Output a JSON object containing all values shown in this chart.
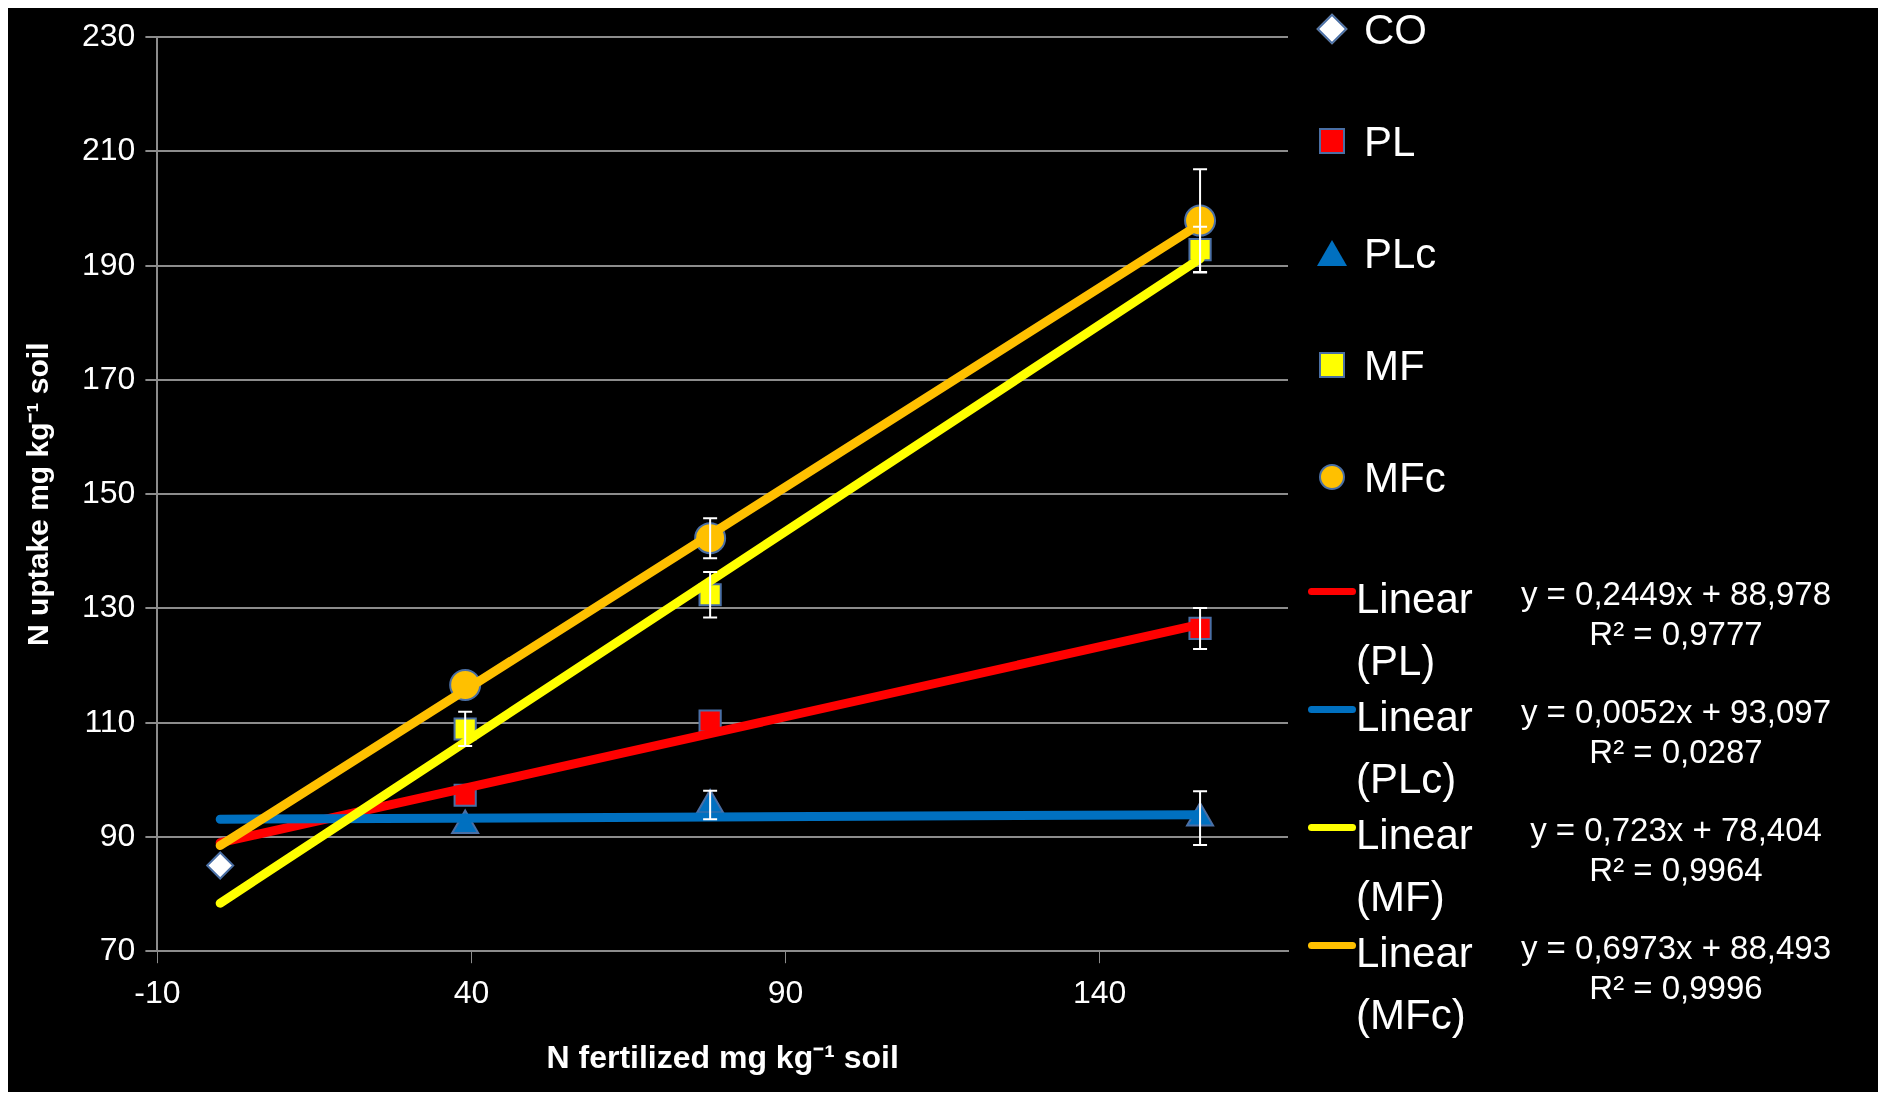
{
  "chart_data": {
    "type": "scatter",
    "xlabel": "N fertilized mg kg⁻¹ soil",
    "ylabel": "N uptake mg kg⁻¹ soil",
    "xlim": [
      -10,
      170
    ],
    "xticks": [
      -10,
      40,
      90,
      140
    ],
    "ylim": [
      70,
      230
    ],
    "yticks": [
      70,
      90,
      110,
      130,
      150,
      170,
      190,
      210,
      230
    ],
    "grid": "y",
    "legend": "right",
    "series": [
      {
        "name": "CO",
        "marker": "diamond",
        "color": "#ffffff",
        "x": [
          0
        ],
        "values": [
          85
        ]
      },
      {
        "name": "PL",
        "marker": "square",
        "color": "#ff0000",
        "x": [
          39,
          78,
          156
        ],
        "values": [
          97.3,
          110.3,
          126.5
        ],
        "errors": [
          null,
          null,
          3.6
        ]
      },
      {
        "name": "PLc",
        "marker": "triangle",
        "color": "#0070c0",
        "x": [
          39,
          78,
          156
        ],
        "values": [
          92,
          95.6,
          93.3
        ],
        "errors": [
          null,
          2.5,
          4.7
        ]
      },
      {
        "name": "MF",
        "marker": "square",
        "color": "#ffff00",
        "x": [
          39,
          78,
          156
        ],
        "values": [
          108.9,
          132.4,
          192.8
        ],
        "errors": [
          3,
          4,
          4
        ]
      },
      {
        "name": "MFc",
        "marker": "circle",
        "color": "#ffc000",
        "x": [
          39,
          78,
          156
        ],
        "values": [
          116.6,
          142.3,
          197.9
        ],
        "errors": [
          null,
          3.5,
          9
        ]
      },
      {
        "name": "Linear (PL)",
        "type": "line",
        "marker": "none",
        "color": "#ff0000",
        "x": [
          0,
          156
        ],
        "values": [
          89,
          127.2
        ]
      },
      {
        "name": "Linear (PLc)",
        "type": "line",
        "marker": "none",
        "color": "#0070c0",
        "x": [
          0,
          156
        ],
        "values": [
          93.1,
          93.9
        ]
      },
      {
        "name": "Linear (MF)",
        "type": "line",
        "marker": "none",
        "color": "#ffff00",
        "x": [
          0,
          156
        ],
        "values": [
          78.4,
          191.2
        ]
      },
      {
        "name": "Linear (MFc)",
        "type": "line",
        "marker": "none",
        "color": "#ffc000",
        "x": [
          0,
          156
        ],
        "values": [
          88.5,
          197.3
        ]
      }
    ],
    "annotations": [
      "y = 0,2449x + 88,978",
      "R² = 0,9777",
      "y = 0,0052x + 93,097",
      "R² = 0,0287",
      "y = 0,723x + 78,404",
      "R² = 0,9964",
      "y = 0,6973x + 88,493",
      "R² = 0,9996"
    ]
  }
}
